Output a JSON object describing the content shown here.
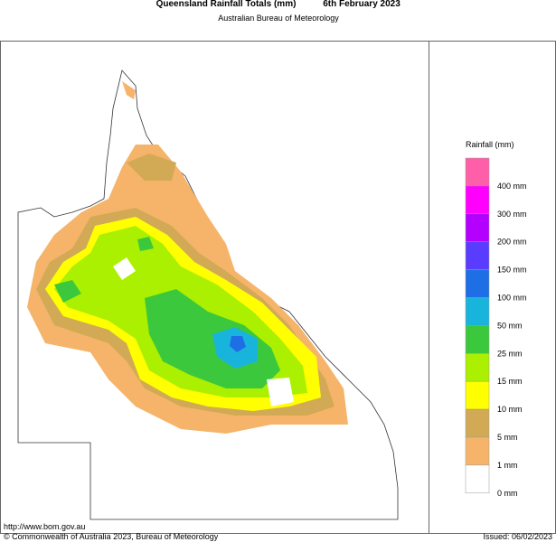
{
  "header": {
    "title": "Queensland Rainfall Totals (mm)",
    "date": "6th February 2023",
    "subtitle": "Australian Bureau of Meteorology"
  },
  "legend": {
    "title": "Rainfall (mm)",
    "swatches": [
      "#ff5fa8",
      "#ff00ff",
      "#b400ff",
      "#5a3cff",
      "#1e6ee6",
      "#19b4dc",
      "#3cc83c",
      "#aaf000",
      "#ffff00",
      "#d2aa55",
      "#f5b469",
      "#ffffff"
    ],
    "labels": [
      "400 mm",
      "300 mm",
      "200 mm",
      "150 mm",
      "100 mm",
      "50 mm",
      "25 mm",
      "15 mm",
      "10 mm",
      "5 mm",
      "1 mm",
      "0 mm"
    ]
  },
  "footer": {
    "url": "http://www.bom.gov.au",
    "copyright": "© Commonwealth of Australia 2023, Bureau of Meteorology",
    "issued": "Issued: 06/02/2023"
  }
}
